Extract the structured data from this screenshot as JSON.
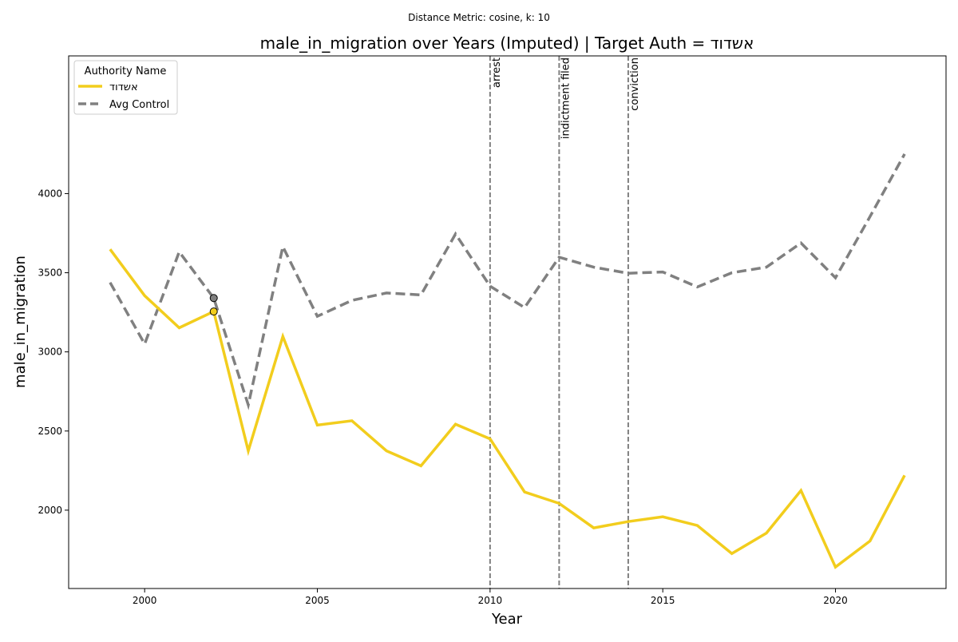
{
  "chart_data": {
    "type": "line",
    "subtitle": "Distance Metric: cosine, k: 10",
    "title": "male_in_migration over Years (Imputed) | Target Auth = אשדוד",
    "xlabel": "Year",
    "ylabel": "male_in_migration",
    "xlim": [
      1997.8,
      2023.2
    ],
    "ylim": [
      1505,
      4870
    ],
    "xticks": [
      2000,
      2005,
      2010,
      2015,
      2020
    ],
    "yticks": [
      2000,
      2500,
      3000,
      3500,
      4000
    ],
    "grid": false,
    "legend": {
      "title": "Authority Name",
      "placement": "top-left"
    },
    "x": [
      1999,
      2000,
      2001,
      2002,
      2003,
      2004,
      2005,
      2006,
      2007,
      2008,
      2009,
      2010,
      2011,
      2012,
      2013,
      2014,
      2015,
      2016,
      2017,
      2018,
      2019,
      2020,
      2021,
      2022
    ],
    "series": [
      {
        "name": "אשדוד",
        "color": "#f2cd1d",
        "style": "solid",
        "values": [
          3648,
          3355,
          3152,
          3255,
          2375,
          3097,
          2537,
          2565,
          2375,
          2280,
          2543,
          2450,
          2115,
          2043,
          1888,
          1928,
          1958,
          1903,
          1726,
          1855,
          2124,
          1640,
          1805,
          2220
        ]
      },
      {
        "name": "Avg Control",
        "color": "#808080",
        "style": "dashed",
        "values": [
          3438,
          3050,
          3632,
          3340,
          2665,
          3665,
          3225,
          3325,
          3372,
          3360,
          3745,
          3415,
          3280,
          3598,
          3535,
          3497,
          3505,
          3410,
          3500,
          3535,
          3688,
          3468,
          3855,
          4250
        ]
      }
    ],
    "markers": [
      {
        "x": 2002,
        "y": 3340,
        "color": "#808080"
      },
      {
        "x": 2002,
        "y": 3255,
        "color": "#f2cd1d"
      }
    ],
    "vlines": [
      {
        "x": 2010,
        "label": "arrest"
      },
      {
        "x": 2012,
        "label": "indictment filed"
      },
      {
        "x": 2014,
        "label": "conviction"
      }
    ]
  }
}
